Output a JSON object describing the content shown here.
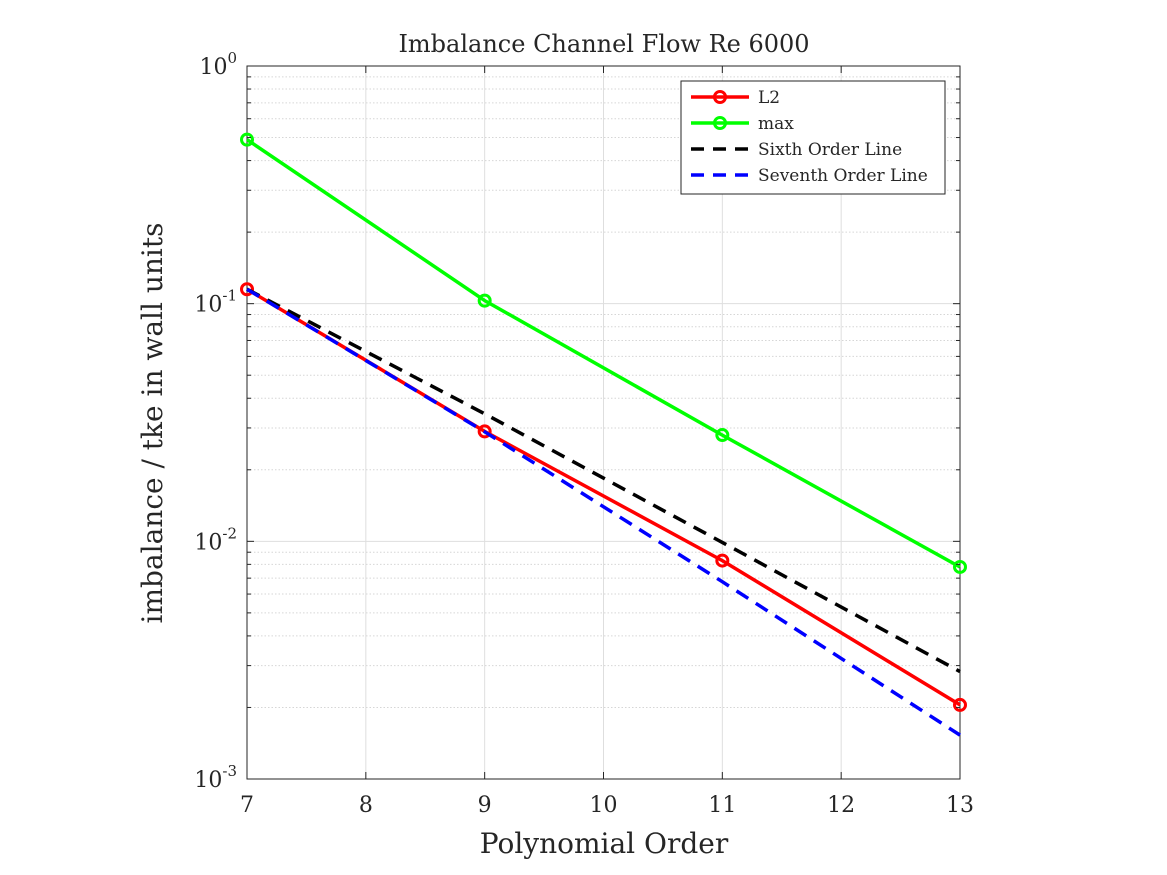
{
  "chart_data": {
    "type": "line",
    "title": "Imbalance Channel Flow Re 6000",
    "xlabel": "Polynomial Order",
    "ylabel": "imbalance / tke in wall units",
    "xlim": [
      7,
      13
    ],
    "ylim": [
      0.001,
      1
    ],
    "yscale": "log",
    "grid": true,
    "legend_position": "top-right",
    "x_ticks": [
      "7",
      "8",
      "9",
      "10",
      "11",
      "12",
      "13"
    ],
    "y_ticks": [
      {
        "base": "10",
        "exp": "-3",
        "value": 0.001
      },
      {
        "base": "10",
        "exp": "-2",
        "value": 0.01
      },
      {
        "base": "10",
        "exp": "-1",
        "value": 0.1
      },
      {
        "base": "10",
        "exp": "0",
        "value": 1
      }
    ],
    "series": [
      {
        "name": "L2",
        "x": [
          7,
          9,
          11,
          13
        ],
        "values": [
          0.115,
          0.029,
          0.0083,
          0.00205
        ],
        "color": "#ff0000",
        "style": "solid",
        "marker": "o"
      },
      {
        "name": "max",
        "x": [
          7,
          9,
          11,
          13
        ],
        "values": [
          0.49,
          0.103,
          0.028,
          0.0078
        ],
        "color": "#00ff00",
        "style": "solid",
        "marker": "o"
      },
      {
        "name": "Sixth Order Line",
        "x": [
          7,
          9,
          11,
          13
        ],
        "values": [
          0.115,
          0.0344,
          0.0099,
          0.00283
        ],
        "color": "#000000",
        "style": "dashed",
        "marker": ""
      },
      {
        "name": "Seventh Order Line",
        "x": [
          7,
          9,
          11,
          13
        ],
        "values": [
          0.115,
          0.0289,
          0.00676,
          0.00153
        ],
        "color": "#0000ff",
        "style": "dashed",
        "marker": ""
      }
    ]
  }
}
